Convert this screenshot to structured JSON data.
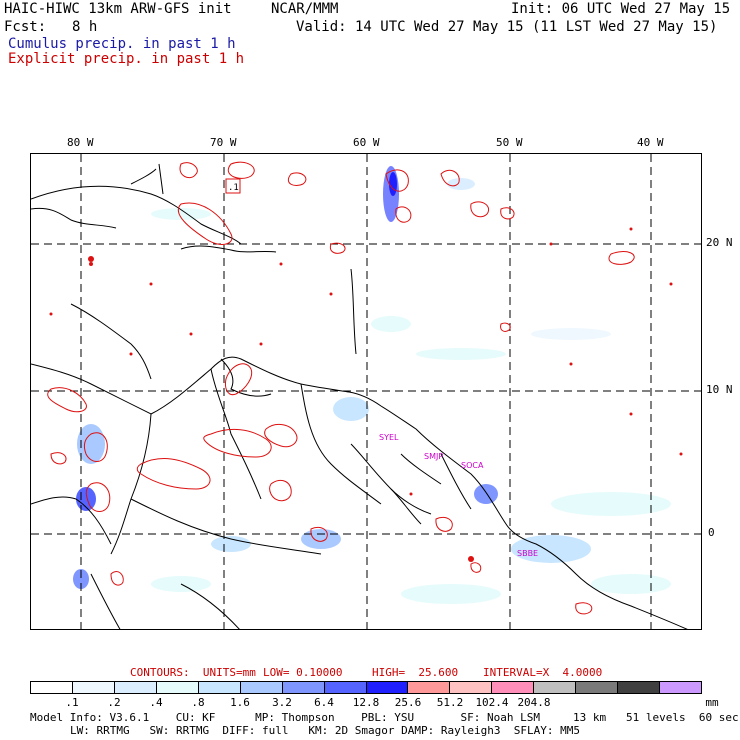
{
  "header": {
    "title_left": "HAIC-HIWC 13km ARW-GFS init",
    "title_center": "NCAR/MMM",
    "init": "Init: 06 UTC Wed 27 May 15",
    "fcst_label": "Fcst:",
    "fcst_value": "8 h",
    "valid": "Valid: 14 UTC Wed 27 May 15 (11 LST Wed 27 May 15)",
    "cumulus_legend": "Cumulus precip. in past 1 h",
    "explicit_legend": "Explicit precip. in past 1 h"
  },
  "colors": {
    "cumulus_text": "#1a1aa6",
    "explicit_text": "#cc0000",
    "contour": "#dd1111",
    "coast": "#000000"
  },
  "map": {
    "lon_labels": [
      "80 W",
      "70 W",
      "60 W",
      "50 W",
      "40 W"
    ],
    "lat_labels": [
      "20 N",
      "10 N",
      "0"
    ],
    "stations": [
      "SYEL",
      "SMJP",
      "SOCA",
      "SBBE"
    ],
    "contour_box_label": ".1"
  },
  "contour_info": {
    "units": "CONTOURS:  UNITS=mm",
    "low": "LOW= 0.10000",
    "high": "HIGH=  25.600",
    "interval": "INTERVAL=X  4.0000"
  },
  "colorbar": {
    "colors": [
      "#ffffff",
      "#f0f8ff",
      "#dbeeff",
      "#e6fbfb",
      "#c8e6ff",
      "#a9c9ff",
      "#7f96ff",
      "#5563ff",
      "#2020ff",
      "#ff9999",
      "#ffc2c2",
      "#ff8fb8",
      "#bfbfbf",
      "#7a7a7a",
      "#404040",
      "#cc99ff"
    ],
    "labels": [
      ".1",
      ".2",
      ".4",
      ".8",
      "1.6",
      "3.2",
      "6.4",
      "12.8",
      "25.6",
      "51.2",
      "102.4",
      "204.8"
    ],
    "units": "mm"
  },
  "model_info": {
    "line1": "Model Info: V3.6.1    CU: KF      MP: Thompson    PBL: YSU       SF: Noah LSM     13 km   51 levels  60 sec",
    "line2": "LW: RRTMG   SW: RRTMG  DIFF: full   KM: 2D Smagor DAMP: Rayleigh3  SFLAY: MM5"
  }
}
